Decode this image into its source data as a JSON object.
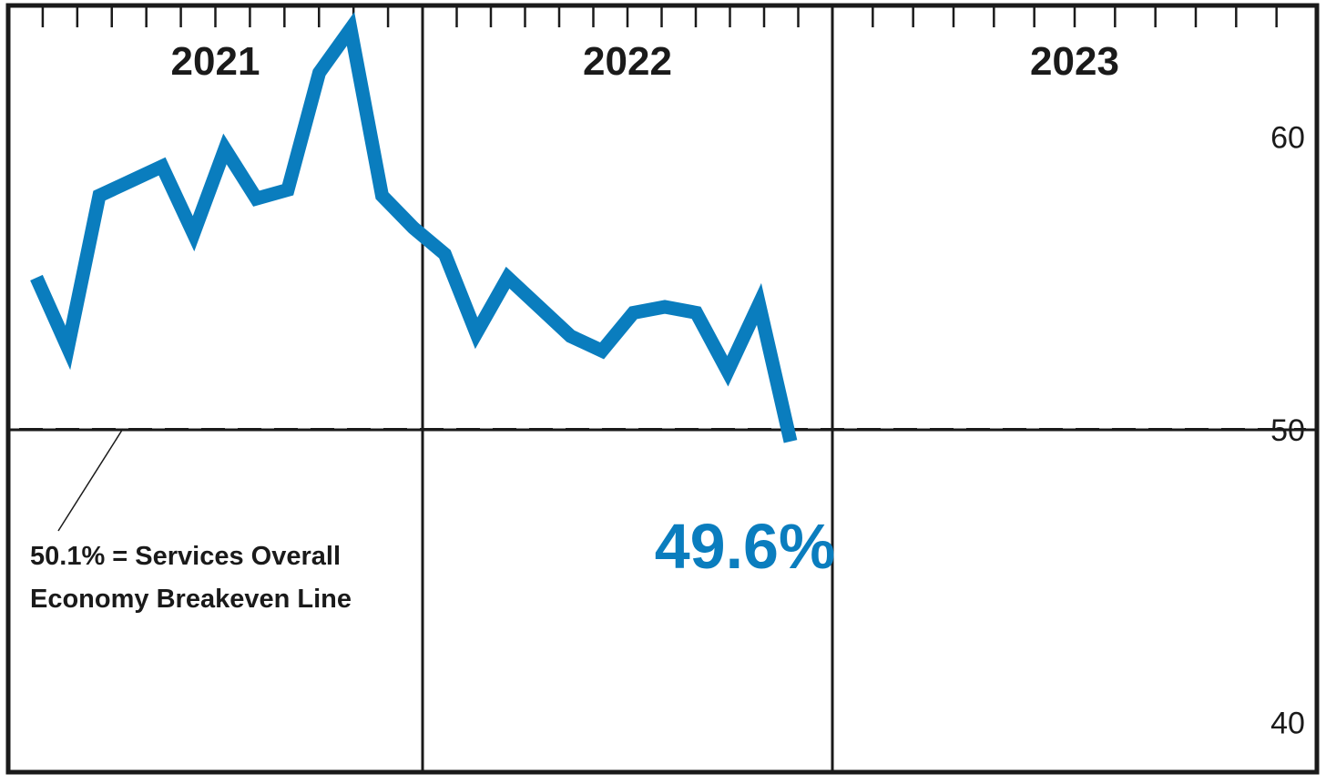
{
  "colors": {
    "series": "#0a7dbe",
    "ink": "#1a1a1a",
    "background": "#ffffff"
  },
  "chart_data": {
    "type": "line",
    "title": "",
    "xlabel": "",
    "ylabel": "",
    "year_labels": [
      "2021",
      "2022",
      "2023"
    ],
    "months_per_year": 12,
    "ylim": [
      38.3,
      64.5
    ],
    "y_ticks": [
      60,
      50,
      40
    ],
    "y_tick_labels": [
      "60",
      "50",
      "40"
    ],
    "y_axis_position": "right",
    "grid": "vertical year dividers and solid line at 50",
    "baseline_value": 50,
    "breakeven": {
      "value": 50.1,
      "label_lines": [
        "50.1% = Services Overall",
        "Economy Breakeven Line"
      ]
    },
    "series": [
      {
        "color": "#0a7dbe",
        "values": [
          55.2,
          52.8,
          58.0,
          58.5,
          59.0,
          56.7,
          59.6,
          57.9,
          58.2,
          62.2,
          63.7,
          58.0,
          56.9,
          56.0,
          53.3,
          55.2,
          54.2,
          53.2,
          52.7,
          54.0,
          54.2,
          54.0,
          52.0,
          54.3,
          49.6
        ]
      }
    ],
    "callout": {
      "text": "49.6%",
      "value": 49.6,
      "color": "#0a7dbe"
    }
  }
}
